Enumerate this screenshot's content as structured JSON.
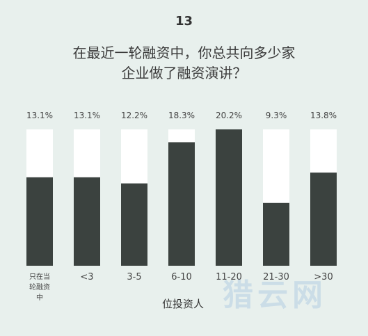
{
  "chart_data": {
    "type": "bar",
    "title": "13",
    "subtitle": [
      "在最近一轮融资中，你总共向多少家",
      "企业做了融资演讲？"
    ],
    "categories": [
      "只在当轮融资中",
      "<3",
      "3-5",
      "6-10",
      "11-20",
      "21-30",
      ">30"
    ],
    "values": [
      13.1,
      13.1,
      12.2,
      18.3,
      20.2,
      9.3,
      13.8
    ],
    "value_labels": [
      "13.1%",
      "13.1%",
      "12.2%",
      "18.3%",
      "20.2%",
      "9.3%",
      "13.8%"
    ],
    "x_label": "位投资人",
    "watermark": "猎云网",
    "color": "#3b423f",
    "track_color": "#ffffff",
    "ylim": [
      0,
      20.2
    ]
  }
}
